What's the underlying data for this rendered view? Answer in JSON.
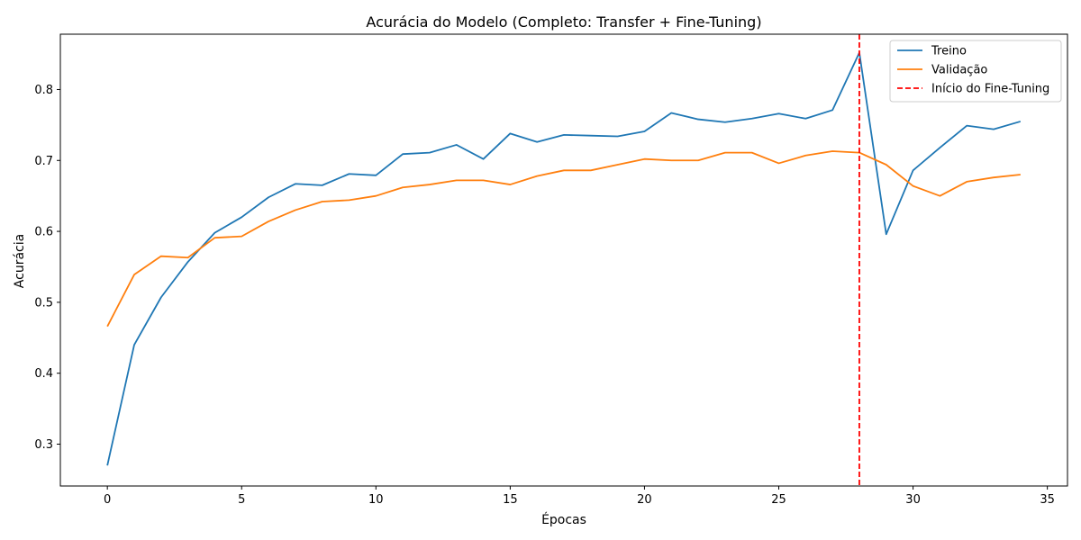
{
  "chart_data": {
    "type": "line",
    "title": "Acurácia do Modelo (Completo: Transfer + Fine-Tuning)",
    "xlabel": "Épocas",
    "ylabel": "Acurácia",
    "xlim": [
      -1.75,
      35.75
    ],
    "ylim": [
      0.241,
      0.878
    ],
    "xticks": [
      0,
      5,
      10,
      15,
      20,
      25,
      30,
      35
    ],
    "yticks": [
      0.3,
      0.4,
      0.5,
      0.6,
      0.7,
      0.8
    ],
    "grid": false,
    "legend_position": "top-right",
    "x": [
      0,
      1,
      2,
      3,
      4,
      5,
      6,
      7,
      8,
      9,
      10,
      11,
      12,
      13,
      14,
      15,
      16,
      17,
      18,
      19,
      20,
      21,
      22,
      23,
      24,
      25,
      26,
      27,
      28,
      29,
      30,
      31,
      32,
      33,
      34
    ],
    "series": [
      {
        "name": "Treino",
        "color": "#1f77b4",
        "values": [
          0.27,
          0.44,
          0.507,
          0.557,
          0.598,
          0.62,
          0.648,
          0.667,
          0.665,
          0.681,
          0.679,
          0.709,
          0.711,
          0.722,
          0.702,
          0.738,
          0.726,
          0.736,
          0.735,
          0.734,
          0.741,
          0.767,
          0.758,
          0.754,
          0.759,
          0.766,
          0.759,
          0.771,
          0.852,
          0.596,
          0.686,
          0.718,
          0.749,
          0.744,
          0.755
        ]
      },
      {
        "name": "Validação",
        "color": "#ff7f0e",
        "values": [
          0.466,
          0.539,
          0.565,
          0.563,
          0.591,
          0.593,
          0.614,
          0.63,
          0.642,
          0.644,
          0.65,
          0.662,
          0.666,
          0.672,
          0.672,
          0.666,
          0.678,
          0.686,
          0.686,
          0.694,
          0.702,
          0.7,
          0.7,
          0.711,
          0.711,
          0.696,
          0.707,
          0.713,
          0.711,
          0.694,
          0.664,
          0.65,
          0.67,
          0.676,
          0.68
        ]
      }
    ],
    "annotations": [
      {
        "type": "vline",
        "x": 28,
        "name": "Início do Fine-Tuning",
        "color": "#ff0000",
        "style": "dashed"
      }
    ]
  }
}
